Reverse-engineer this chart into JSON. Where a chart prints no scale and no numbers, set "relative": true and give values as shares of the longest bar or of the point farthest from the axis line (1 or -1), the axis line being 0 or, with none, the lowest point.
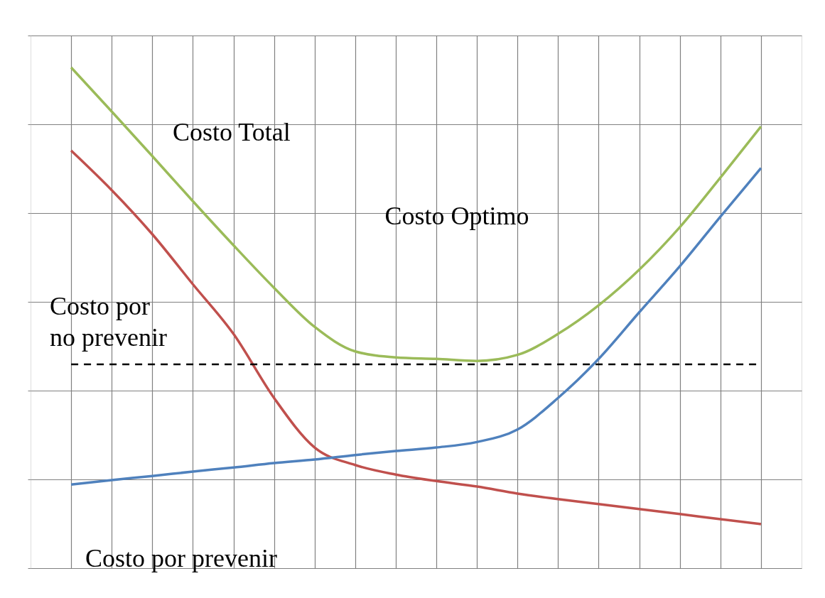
{
  "chart_data": {
    "type": "line",
    "relative": true,
    "categories": [
      null,
      null,
      null,
      null,
      null,
      null,
      null,
      null,
      null,
      null,
      null,
      null,
      null,
      null,
      null,
      null,
      null,
      null
    ],
    "series": [
      {
        "name": "Costo Total",
        "color": "#9bbb59",
        "values": [
          1.0,
          0.912,
          0.823,
          0.733,
          0.645,
          0.56,
          0.482,
          0.433,
          0.421,
          0.418,
          0.414,
          0.426,
          0.468,
          0.525,
          0.596,
          0.681,
          0.78,
          0.882
        ]
      },
      {
        "name": "Costo por no prevenir",
        "color": "#c0504d",
        "values": [
          0.834,
          0.755,
          0.667,
          0.567,
          0.468,
          0.34,
          0.241,
          0.206,
          0.187,
          0.174,
          0.163,
          0.149,
          0.138,
          0.128,
          0.118,
          0.108,
          0.098,
          0.088
        ]
      },
      {
        "name": "Costo por prevenir",
        "color": "#4f81bd",
        "values": [
          0.167,
          0.176,
          0.184,
          0.193,
          0.201,
          0.21,
          0.217,
          0.226,
          0.234,
          0.241,
          0.252,
          0.277,
          0.34,
          0.418,
          0.511,
          0.603,
          0.702,
          0.799
        ]
      }
    ],
    "ref_lines": [
      {
        "axis": "y",
        "value": 0.407,
        "color": "#000000",
        "line_style": "dashed"
      }
    ],
    "annotations": [
      "Costo Optimo"
    ],
    "grid": true,
    "legend": false,
    "line_style": "solid",
    "marker": "none"
  }
}
